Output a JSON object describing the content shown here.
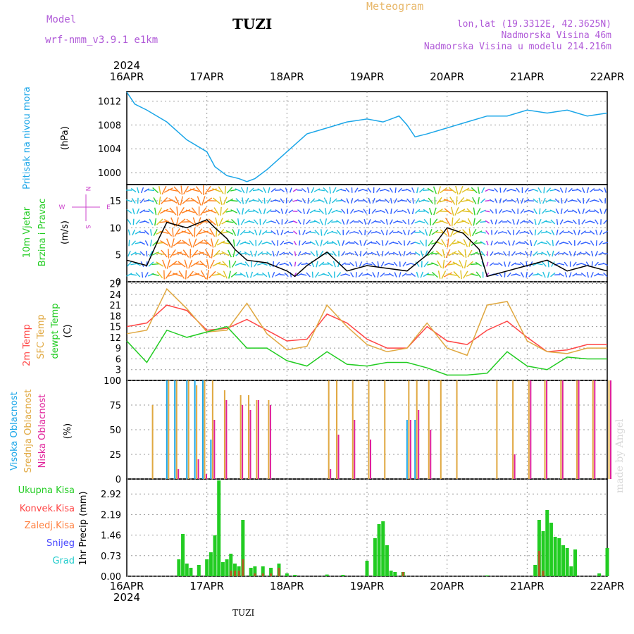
{
  "header": {
    "model_label": "Model",
    "model_name": "wrf-nmm_v3.9.1 e1km",
    "station": "TUZI",
    "meteogram": "Meteogram",
    "lonlat": "lon,lat (19.3312E, 42.3625N)",
    "elevation": "Nadmorska Visina 46m",
    "model_elevation": "Nadmorska Visina u modelu 214.216m"
  },
  "footer": {
    "station": "TUZI",
    "watermark": "made by Angel"
  },
  "time_axis": {
    "year": "2024",
    "labels": [
      "16APR",
      "17APR",
      "18APR",
      "19APR",
      "20APR",
      "21APR",
      "22APR"
    ]
  },
  "colors": {
    "pressure": "#1ba6e8",
    "temp": "#ff4444",
    "sfc_temp": "#e0a840",
    "dewpt": "#22cc22",
    "high_cloud": "#1ba6e8",
    "mid_cloud": "#e0a840",
    "low_cloud": "#e0209a",
    "precip_total": "#22cc22",
    "precip_conv": "#ff4444",
    "precip_frozen": "#ff8040",
    "snow": "#4444ff",
    "graupel": "#22cccc",
    "wind_dir_label": "#cc44cc"
  },
  "chart_data": [
    {
      "type": "line",
      "title": "",
      "ylabel": [
        "Pritisak na nivou mora",
        "(hPa)"
      ],
      "yticks": [
        1000,
        1004,
        1008,
        1012
      ],
      "ylim": [
        998,
        1013.6
      ],
      "x_days": [
        0,
        0.1,
        0.25,
        0.5,
        0.75,
        1,
        1.1,
        1.25,
        1.4,
        1.5,
        1.6,
        1.75,
        2,
        2.25,
        2.5,
        2.75,
        3,
        3.2,
        3.3,
        3.4,
        3.5,
        3.6,
        3.75,
        4,
        4.25,
        4.5,
        4.75,
        5,
        5.25,
        5.5,
        5.75,
        6
      ],
      "series": [
        {
          "name": "",
          "values": [
            1013.5,
            1011.5,
            1010.5,
            1008.5,
            1005.5,
            1003.5,
            1001,
            999.5,
            999,
            998.5,
            999,
            1000.5,
            1003.5,
            1006.5,
            1007.5,
            1008.5,
            1009,
            1008.5,
            1009,
            1009.5,
            1008,
            1006,
            1006.5,
            1007.5,
            1008.5,
            1009.5,
            1009.5,
            1010.5,
            1010,
            1010.5,
            1009.5,
            1010
          ]
        }
      ],
      "grid": true
    },
    {
      "type": "line",
      "title": "",
      "ylabel": [
        "10m Vjetar",
        "Brzina i Pravac",
        "(m/s)"
      ],
      "yticks": [
        0,
        5,
        10,
        15
      ],
      "ylim": [
        0,
        18
      ],
      "direction_key": [
        "N",
        "W",
        "E",
        "S"
      ],
      "x_days": [
        0,
        0.25,
        0.4,
        0.5,
        0.75,
        1,
        1.1,
        1.25,
        1.35,
        1.5,
        1.75,
        2,
        2.1,
        2.25,
        2.5,
        2.75,
        3,
        3.25,
        3.5,
        3.75,
        4,
        4.2,
        4.4,
        4.5,
        4.75,
        5,
        5.25,
        5.5,
        5.75,
        6
      ],
      "series": [
        {
          "name": "",
          "values": [
            4,
            3,
            8,
            11,
            10,
            11.5,
            10,
            8,
            6,
            4,
            3.5,
            2,
            1,
            3,
            5.5,
            2,
            3,
            2.5,
            2,
            5,
            10,
            9,
            6,
            1,
            2,
            3,
            4,
            2,
            3,
            2
          ]
        }
      ],
      "grid": true
    },
    {
      "type": "line",
      "title": "",
      "ylabel": [
        "2m Temp",
        "SFC Temp",
        "dewpt Temp",
        "(C)"
      ],
      "yticks": [
        0,
        3,
        6,
        9,
        12,
        15,
        18,
        21,
        24,
        27
      ],
      "ylim": [
        0,
        27.5
      ],
      "x_days": [
        0,
        0.25,
        0.5,
        0.75,
        1,
        1.25,
        1.5,
        1.75,
        2,
        2.25,
        2.5,
        2.75,
        3,
        3.25,
        3.5,
        3.75,
        4,
        4.25,
        4.5,
        4.75,
        5,
        5.25,
        5.5,
        5.75,
        6
      ],
      "series": [
        {
          "name": "2m Temp",
          "values": [
            15,
            16,
            21,
            19.5,
            14,
            14.5,
            17,
            14,
            11,
            11.5,
            18.5,
            16,
            11.5,
            9,
            9,
            15,
            11,
            10,
            14,
            16.5,
            12,
            8,
            8.5,
            10,
            10
          ]
        },
        {
          "name": "SFC Temp",
          "values": [
            13,
            14,
            25.5,
            20,
            13.5,
            14,
            21.5,
            13,
            8.5,
            9.5,
            21,
            15,
            10,
            8,
            9,
            16,
            9,
            7,
            21,
            22,
            11,
            8,
            7.5,
            9,
            9
          ]
        },
        {
          "name": "dewpt Temp",
          "values": [
            11,
            5,
            14,
            12,
            13.5,
            15,
            9,
            9,
            5.5,
            4,
            8,
            4.5,
            4,
            5,
            5,
            3.5,
            1.5,
            1.5,
            2,
            8,
            4,
            3,
            6.5,
            6,
            6
          ]
        }
      ],
      "grid": true
    },
    {
      "type": "bar",
      "title": "",
      "ylabel": [
        "Visoka Oblacnost",
        "Srednja Oblacnost",
        "Niska Oblacnost",
        "(%)"
      ],
      "yticks": [
        0,
        25,
        50,
        75,
        100
      ],
      "ylim": [
        0,
        100
      ],
      "x_days": [
        0.3,
        0.5,
        0.6,
        0.75,
        0.85,
        0.95,
        1.05,
        1.2,
        1.4,
        1.5,
        1.6,
        1.75,
        2.5,
        2.6,
        2.8,
        3,
        3.2,
        3.5,
        3.6,
        3.75,
        3.9,
        4.1,
        4.5,
        4.6,
        4.8,
        5,
        5.2,
        5.4,
        5.6,
        5.8,
        6
      ],
      "series": [
        {
          "name": "Visoka Oblacnost",
          "values": [
            0,
            100,
            100,
            100,
            100,
            100,
            40,
            0,
            0,
            0,
            0,
            0,
            0,
            0,
            0,
            0,
            0,
            60,
            60,
            0,
            0,
            0,
            0,
            0,
            0,
            0,
            0,
            0,
            0,
            0,
            0
          ]
        },
        {
          "name": "Srednja Oblacnost",
          "values": [
            75,
            100,
            100,
            100,
            95,
            100,
            100,
            90,
            85,
            85,
            80,
            80,
            100,
            100,
            100,
            100,
            100,
            100,
            100,
            100,
            100,
            100,
            0,
            100,
            100,
            100,
            100,
            100,
            100,
            100,
            100
          ]
        },
        {
          "name": "Niska Oblacnost",
          "values": [
            0,
            0,
            10,
            0,
            20,
            5,
            60,
            80,
            75,
            70,
            80,
            75,
            10,
            45,
            60,
            40,
            0,
            60,
            70,
            50,
            0,
            0,
            0,
            0,
            25,
            100,
            100,
            100,
            100,
            100,
            100
          ]
        }
      ],
      "grid": true
    },
    {
      "type": "bar",
      "title": "",
      "ylabel": [
        "Ukupna Kisa",
        "Konvek.Kisa",
        "Zaledj.Kisa",
        "Snijeg",
        "Grad",
        "1hr Precip (mm)"
      ],
      "yticks": [
        0,
        0.73,
        1.46,
        2.19,
        2.92
      ],
      "ylim": [
        0,
        3.45
      ],
      "x_days": [
        0.65,
        0.7,
        0.75,
        0.8,
        0.9,
        1,
        1.05,
        1.1,
        1.15,
        1.2,
        1.25,
        1.3,
        1.35,
        1.4,
        1.45,
        1.55,
        1.6,
        1.7,
        1.8,
        1.9,
        2,
        2.1,
        2.5,
        2.7,
        3,
        3.1,
        3.15,
        3.2,
        3.25,
        3.3,
        3.35,
        3.45,
        4.5,
        5.1,
        5.15,
        5.2,
        5.25,
        5.3,
        5.35,
        5.4,
        5.45,
        5.5,
        5.55,
        5.6,
        5.9,
        6
      ],
      "series": [
        {
          "name": "Ukupna Kisa",
          "values": [
            0.6,
            1.5,
            0.45,
            0.3,
            0.4,
            0.6,
            0.85,
            1.45,
            3.4,
            0.5,
            0.6,
            0.8,
            0.45,
            0.35,
            2.0,
            0.3,
            0.35,
            0.35,
            0.3,
            0.45,
            0.1,
            0.05,
            0.06,
            0.05,
            0.55,
            1.35,
            1.85,
            1.95,
            1.1,
            0.2,
            0.15,
            0.15,
            0.03,
            0.4,
            2.0,
            1.6,
            2.35,
            1.9,
            1.4,
            1.35,
            1.1,
            1.0,
            0.35,
            0.95,
            0.1,
            1.0
          ]
        },
        {
          "name": "Konvek.Kisa",
          "values": [
            0,
            0,
            0,
            0,
            0,
            0,
            0,
            0,
            0,
            0,
            0,
            0.2,
            0.2,
            0.2,
            0.6,
            0,
            0.1,
            0.1,
            0.1,
            0.3,
            0,
            0,
            0,
            0,
            0,
            0,
            0,
            0,
            0,
            0,
            0,
            0.15,
            0,
            0,
            0.9,
            0.2,
            0,
            0,
            0,
            0,
            0,
            0,
            0,
            0,
            0,
            0
          ]
        },
        {
          "name": "Zaledj.Kisa",
          "values": []
        },
        {
          "name": "Snijeg",
          "values": []
        },
        {
          "name": "Grad",
          "values": []
        }
      ],
      "grid": true
    }
  ]
}
